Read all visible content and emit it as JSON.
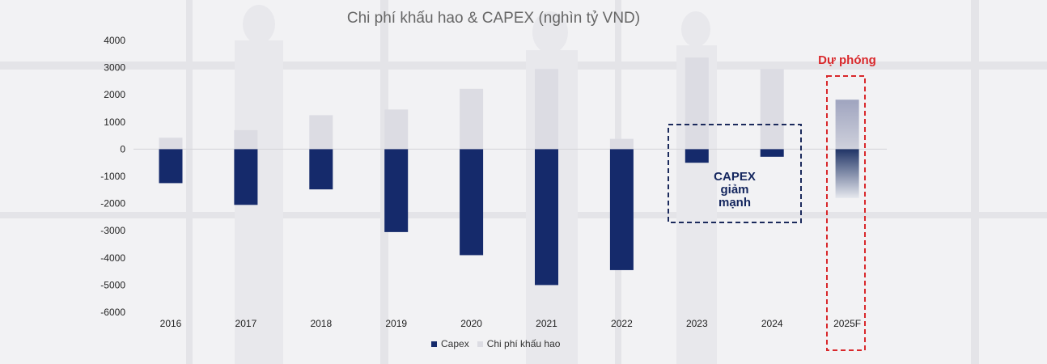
{
  "chart_data": {
    "type": "bar",
    "title": "Chi phí khấu hao & CAPEX (nghìn tỷ VND)",
    "categories": [
      "2016",
      "2017",
      "2018",
      "2019",
      "2020",
      "2021",
      "2022",
      "2023",
      "2024",
      "2025F"
    ],
    "series": [
      {
        "name": "Capex",
        "values": [
          -1250,
          -2050,
          -1480,
          -3050,
          -3900,
          -5000,
          -4450,
          -500,
          -280,
          -1800
        ]
      },
      {
        "name": "Chi phí khấu hao",
        "values": [
          420,
          700,
          1250,
          1460,
          2220,
          2950,
          380,
          3370,
          2950,
          1820
        ]
      }
    ],
    "ylim": [
      -6000,
      4000
    ],
    "yticks": [
      4000,
      3000,
      2000,
      1000,
      0,
      -1000,
      -2000,
      -3000,
      -4000,
      -5000,
      -6000
    ],
    "colors": {
      "capex": "#152a6b",
      "depreciation": "#dcdce3",
      "forecast_box": "#d9282b",
      "callout_box": "#1b2a5c"
    },
    "legend_position": "bottom",
    "grid": false,
    "annotations": {
      "callout": "CAPEX\ngiảm\nmạnh",
      "forecast": "Dự phóng"
    }
  }
}
